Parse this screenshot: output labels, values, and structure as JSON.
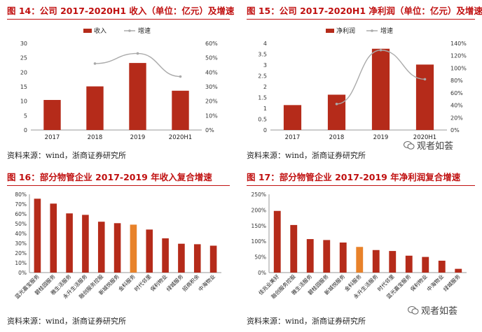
{
  "panels": [
    {
      "id": "p14",
      "title": "图 14：公司 2017-2020H1 收入（单位：亿元）及增速",
      "source": "资料来源：wind，浙商证券研究所"
    },
    {
      "id": "p15",
      "title": "图 15：公司 2017-2020H1 净利润（单位：亿元）及增速",
      "source": "资料来源：wind，浙商证券研究所"
    },
    {
      "id": "p16",
      "title": "图 16：部分物管企业 2017-2019 年收入复合增速",
      "source": "资料来源：wind，浙商证券研究所"
    },
    {
      "id": "p17",
      "title": "图 17：部分物管企业 2017-2019 年净利润复合增速",
      "source": "资料来源：wind，浙商证券研究所"
    }
  ],
  "watermark": {
    "text": "观者如荟"
  },
  "colors": {
    "bar": "#b52b1a",
    "highlight": "#e8822a",
    "line": "#aaaaaa",
    "title": "#c01010"
  },
  "chart_data": [
    {
      "type": "bar",
      "title": "图 14：公司 2017-2020H1 收入（单位：亿元）及增速",
      "categories": [
        "2017",
        "2018",
        "2019",
        "2020H1"
      ],
      "series": [
        {
          "name": "收入",
          "type": "bar",
          "axis": "left",
          "values": [
            10.4,
            15.1,
            23.2,
            13.6
          ]
        },
        {
          "name": "增速",
          "type": "line",
          "axis": "right",
          "values": [
            null,
            0.46,
            0.53,
            0.37
          ]
        }
      ],
      "ylim": [
        0,
        30
      ],
      "yticks": [
        "0",
        "5",
        "10",
        "15",
        "20",
        "25",
        "30"
      ],
      "y2lim": [
        0,
        0.6
      ],
      "y2ticks": [
        "0%",
        "10%",
        "20%",
        "30%",
        "40%",
        "50%",
        "60%"
      ],
      "legend": [
        "收入",
        "增速"
      ],
      "legend_position": "top"
    },
    {
      "type": "bar",
      "title": "图 15：公司 2017-2020H1 净利润（单位：亿元）及增速",
      "categories": [
        "2017",
        "2018",
        "2019",
        "2020H1"
      ],
      "series": [
        {
          "name": "净利润",
          "type": "bar",
          "axis": "left",
          "values": [
            1.15,
            1.63,
            3.75,
            3.02
          ]
        },
        {
          "name": "增速",
          "type": "line",
          "axis": "right",
          "values": [
            null,
            0.42,
            1.29,
            0.82
          ]
        }
      ],
      "ylim": [
        0,
        4
      ],
      "yticks": [
        "0",
        "0.5",
        "1",
        "1.5",
        "2",
        "2.5",
        "3",
        "3.5",
        "4"
      ],
      "y2lim": [
        0,
        1.4
      ],
      "y2ticks": [
        "0%",
        "20%",
        "40%",
        "60%",
        "80%",
        "100%",
        "120%",
        "140%"
      ],
      "legend": [
        "净利润",
        "增速"
      ],
      "legend_position": "top"
    },
    {
      "type": "bar",
      "title": "图 16：部分物管企业 2017-2019 年收入复合增速",
      "categories": [
        "蓝光嘉宝服务",
        "碧桂园服务",
        "雅生活服务",
        "永升生活服务",
        "融创服务控股",
        "新城悦服务",
        "金科服务",
        "时代邻里",
        "保利物业",
        "绿城服务",
        "招商积余",
        "中海物业"
      ],
      "values": [
        0.755,
        0.705,
        0.605,
        0.59,
        0.52,
        0.505,
        0.49,
        0.44,
        0.35,
        0.295,
        0.29,
        0.275
      ],
      "highlight_index": 6,
      "ylim": [
        0,
        0.8
      ],
      "yticks": [
        "0%",
        "10%",
        "20%",
        "30%",
        "40%",
        "50%",
        "60%",
        "70%",
        "80%"
      ]
    },
    {
      "type": "bar",
      "title": "图 17：部分物管企业 2017-2019 年净利润复合增速",
      "categories": [
        "佳兆业美好",
        "融创服务控股",
        "雅生活服务",
        "碧桂园服务",
        "新城悦服务",
        "金科服务",
        "永升生活服务",
        "时代邻里",
        "蓝光嘉宝服务",
        "保利物业",
        "中海物业",
        "绿城服务"
      ],
      "values": [
        1.97,
        1.52,
        1.07,
        1.04,
        0.96,
        0.82,
        0.72,
        0.69,
        0.54,
        0.5,
        0.38,
        0.12
      ],
      "highlight_index": 5,
      "ylim": [
        0,
        2.5
      ],
      "yticks": [
        "0%",
        "50%",
        "100%",
        "150%",
        "200%",
        "250%"
      ]
    }
  ]
}
